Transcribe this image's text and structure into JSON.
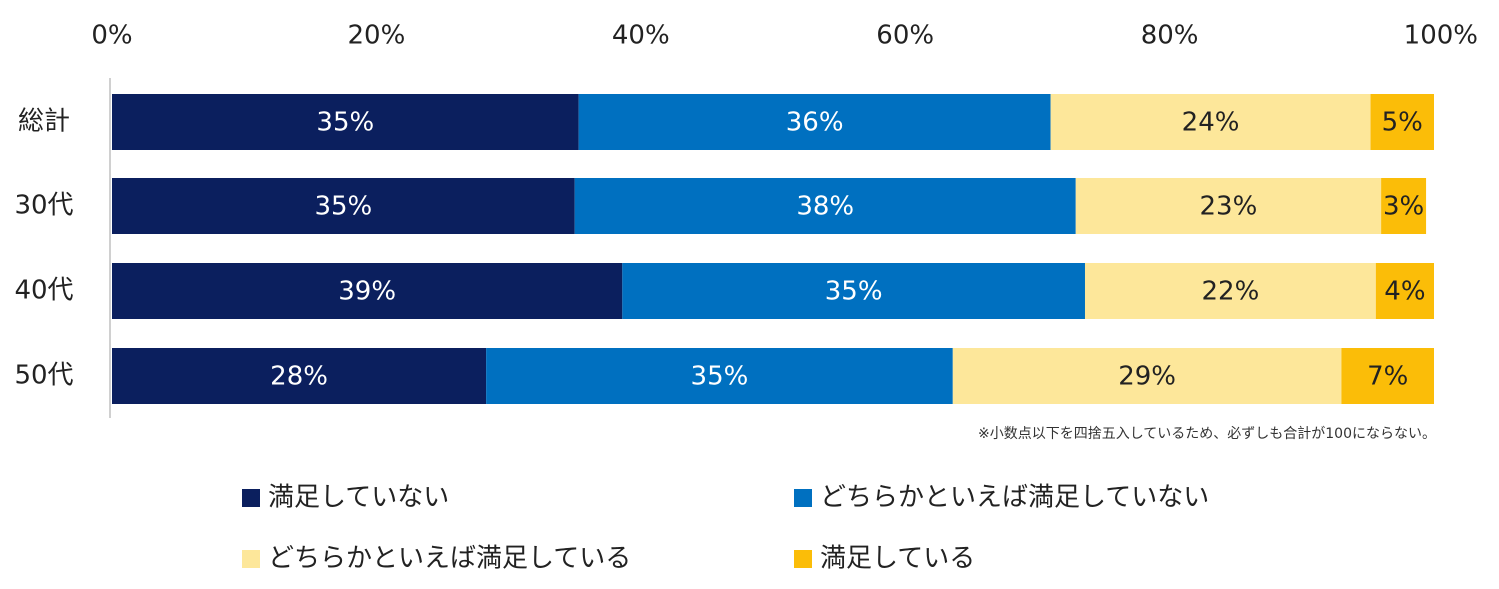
{
  "chart_data": {
    "type": "bar",
    "orientation": "horizontal",
    "stacked": true,
    "xlim": [
      0,
      100
    ],
    "x_ticks": [
      "0%",
      "20%",
      "40%",
      "60%",
      "80%",
      "100%"
    ],
    "categories": [
      "総計",
      "30代",
      "40代",
      "50代"
    ],
    "series": [
      {
        "name": "満足していない",
        "color": "#0b1f5e",
        "label_color": "#ffffff",
        "values": [
          35.3,
          35.0,
          38.6,
          28.3
        ],
        "labels": [
          "35%",
          "35%",
          "39%",
          "28%"
        ]
      },
      {
        "name": "どちらかといえば満足していない",
        "color": "#0070c0",
        "label_color": "#ffffff",
        "values": [
          35.7,
          37.9,
          35.0,
          35.3
        ],
        "labels": [
          "36%",
          "38%",
          "35%",
          "35%"
        ]
      },
      {
        "name": "どちらかといえば満足している",
        "color": "#fde79a",
        "label_color": "#222222",
        "values": [
          24.2,
          23.1,
          22.0,
          29.4
        ],
        "labels": [
          "24%",
          "23%",
          "22%",
          "29%"
        ]
      },
      {
        "name": "満足している",
        "color": "#fbbd08",
        "label_color": "#222222",
        "values": [
          4.8,
          3.4,
          4.5,
          7.0
        ],
        "labels": [
          "5%",
          "3%",
          "4%",
          "7%"
        ]
      }
    ],
    "note": "※小数点以下を四捨五入しているため、必ずしも合計が100にならない。",
    "legend_position": "bottom",
    "grid": false
  }
}
